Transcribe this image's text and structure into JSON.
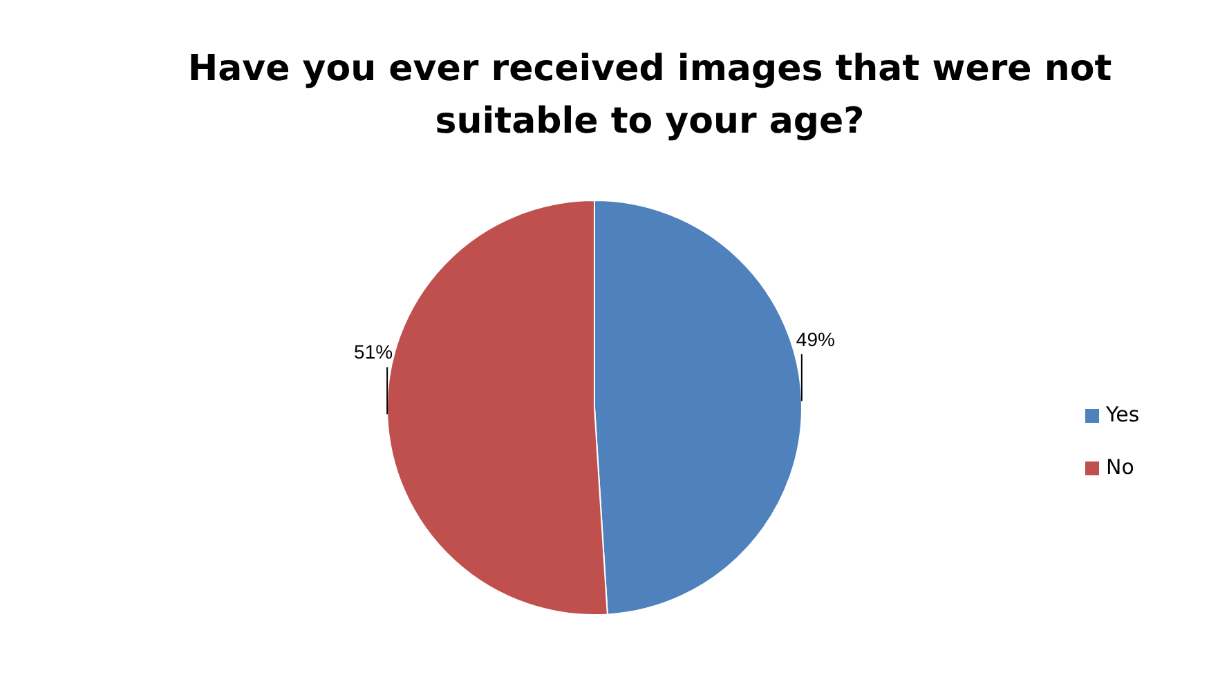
{
  "chart_data": {
    "type": "pie",
    "title": "Have you ever received images that were not suitable to your age?",
    "categories": [
      "Yes",
      "No"
    ],
    "values": [
      49,
      51
    ],
    "colors": [
      "#4f81bd",
      "#c0504d"
    ],
    "value_labels": [
      "49%",
      "51%"
    ],
    "legend": "right"
  }
}
